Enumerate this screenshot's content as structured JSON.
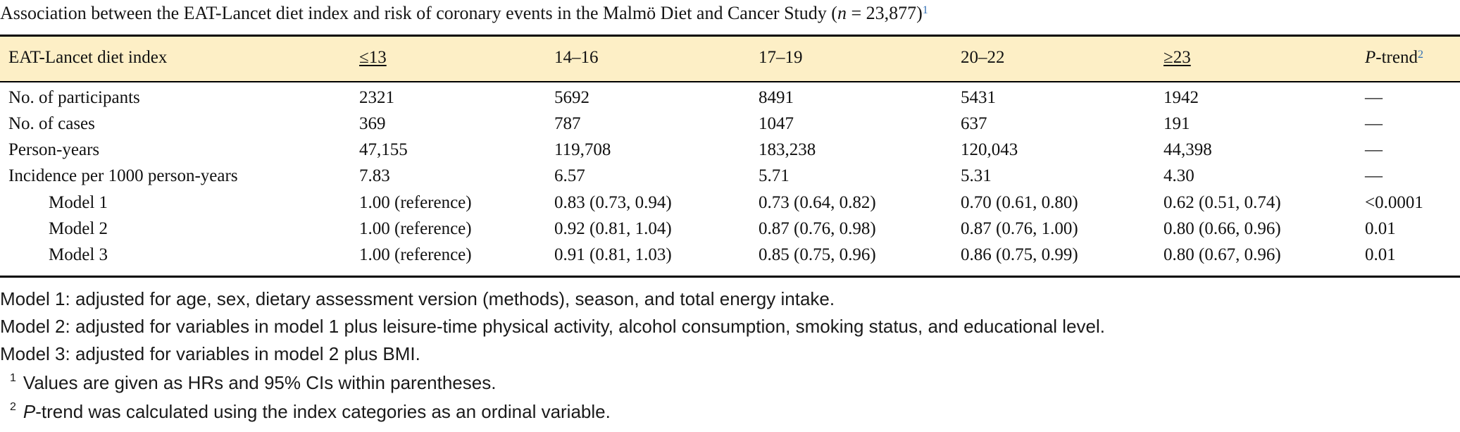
{
  "title": {
    "text_before": "Association between the EAT-Lancet diet index and risk of coronary events in the Malmö Diet and Cancer Study (",
    "n_var": "n",
    "text_value": " = 23,877)",
    "sup": "1"
  },
  "header": {
    "c0": "EAT-Lancet diet index",
    "c1": "≤13",
    "c2": "14–16",
    "c3": "17–19",
    "c4": "20–22",
    "c5": "≥23",
    "c6_ital": "P",
    "c6_rest": "-trend",
    "c6_sup": "2"
  },
  "rows": [
    {
      "c0": "No. of participants",
      "c1": "2321",
      "c2": "5692",
      "c3": "8491",
      "c4": "5431",
      "c5": "1942",
      "c6": "—"
    },
    {
      "c0": "No. of cases",
      "c1": "369",
      "c2": "787",
      "c3": "1047",
      "c4": "637",
      "c5": "191",
      "c6": "—"
    },
    {
      "c0": "Person-years",
      "c1": "47,155",
      "c2": "119,708",
      "c3": "183,238",
      "c4": "120,043",
      "c5": "44,398",
      "c6": "—"
    },
    {
      "c0": "Incidence per 1000 person-years",
      "c1": "7.83",
      "c2": "6.57",
      "c3": "5.71",
      "c4": "5.31",
      "c5": "4.30",
      "c6": "—"
    },
    {
      "c0": "Model 1",
      "c1": "1.00 (reference)",
      "c2": "0.83 (0.73, 0.94)",
      "c3": "0.73 (0.64, 0.82)",
      "c4": "0.70 (0.61, 0.80)",
      "c5": "0.62 (0.51, 0.74)",
      "c6": "<0.0001"
    },
    {
      "c0": "Model 2",
      "c1": "1.00 (reference)",
      "c2": "0.92 (0.81, 1.04)",
      "c3": "0.87 (0.76, 0.98)",
      "c4": "0.87 (0.76, 1.00)",
      "c5": "0.80 (0.66, 0.96)",
      "c6": "0.01"
    },
    {
      "c0": "Model 3",
      "c1": "1.00 (reference)",
      "c2": "0.91 (0.81, 1.03)",
      "c3": "0.85 (0.75, 0.96)",
      "c4": "0.86 (0.75, 0.99)",
      "c5": "0.80 (0.67, 0.96)",
      "c6": "0.01"
    }
  ],
  "notes": {
    "model1": "Model 1: adjusted for age, sex, dietary assessment version (methods), season, and total energy intake.",
    "model2": "Model 2: adjusted for variables in model 1 plus leisure-time physical activity, alcohol consumption, smoking status, and educational level.",
    "model3": "Model 3: adjusted for variables in model 2 plus BMI.",
    "fn1_sup": "1",
    "fn1_text": "Values are given as HRs and 95% CIs within parentheses.",
    "fn2_sup": "2",
    "fn2_ital": "P",
    "fn2_text": "-trend was calculated using the index categories as an ordinal variable."
  },
  "colors": {
    "header_band": "#fdefc6",
    "rule": "#000000",
    "sup_link": "#2f6eb5"
  }
}
